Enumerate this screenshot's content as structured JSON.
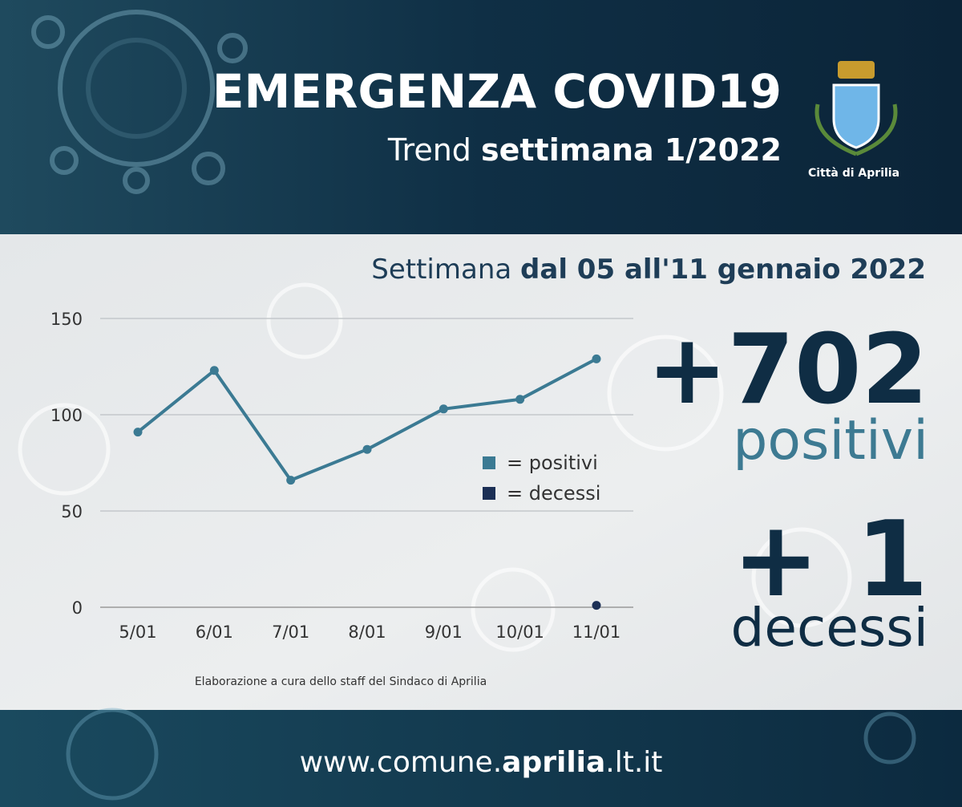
{
  "header": {
    "title": "EMERGENZA COVID19",
    "subtitle_regular": "Trend ",
    "subtitle_bold": "settimana 1/2022",
    "logo_label": "Città di Aprilia"
  },
  "period": {
    "regular": "Settimana ",
    "bold": "dal 05 all'11 gennaio 2022"
  },
  "chart_data": {
    "type": "line",
    "categories": [
      "5/01",
      "6/01",
      "7/01",
      "8/01",
      "9/01",
      "10/01",
      "11/01"
    ],
    "series": [
      {
        "name": "= positivi",
        "color": "#3b7a93",
        "values": [
          91,
          123,
          66,
          82,
          103,
          108,
          129
        ]
      },
      {
        "name": "= decessi",
        "color": "#1b2f55",
        "values": [
          null,
          null,
          null,
          null,
          null,
          null,
          1
        ]
      }
    ],
    "ylim": [
      0,
      150
    ],
    "yticks": [
      0,
      50,
      100,
      150
    ],
    "grid": true,
    "annotation": "Elaborazione a cura dello staff del Sindaco di Aprilia"
  },
  "totals": {
    "positive_value": "+702",
    "positive_label": "positivi",
    "deaths_value": "+ 1",
    "deaths_label": "decessi"
  },
  "footer": {
    "url_start": "www.comune.",
    "url_bold": "aprilia",
    "url_end": ".lt.it"
  }
}
